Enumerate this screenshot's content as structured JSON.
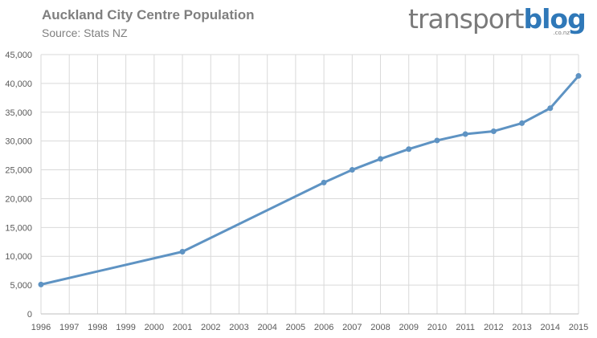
{
  "header": {
    "title": "Auckland City Centre Population",
    "subtitle": "Source: Stats NZ"
  },
  "logo": {
    "part1": "transport",
    "part2": "blog",
    "domain": ".co.nz"
  },
  "colors": {
    "series": "#5e93c3",
    "grid": "#d9d9d9",
    "logo_blue": "#2f78b8"
  },
  "chart_data": {
    "type": "line",
    "title": "Auckland City Centre Population",
    "subtitle": "Source: Stats NZ",
    "xlabel": "",
    "ylabel": "",
    "ylim": [
      0,
      45000
    ],
    "yticks": [
      0,
      5000,
      10000,
      15000,
      20000,
      25000,
      30000,
      35000,
      40000,
      45000
    ],
    "ytick_labels": [
      "0",
      "5,000",
      "10,000",
      "15,000",
      "20,000",
      "25,000",
      "30,000",
      "35,000",
      "40,000",
      "45,000"
    ],
    "x_categories": [
      "1996",
      "1997",
      "1998",
      "1999",
      "2000",
      "2001",
      "2002",
      "2003",
      "2004",
      "2005",
      "2006",
      "2007",
      "2008",
      "2009",
      "2010",
      "2011",
      "2012",
      "2013",
      "2014",
      "2015"
    ],
    "grid": true,
    "legend": "none",
    "series": [
      {
        "name": "Population",
        "points": [
          {
            "x": "1996",
            "y": 5100
          },
          {
            "x": "2001",
            "y": 10800
          },
          {
            "x": "2006",
            "y": 22800
          },
          {
            "x": "2007",
            "y": 25000
          },
          {
            "x": "2008",
            "y": 26900
          },
          {
            "x": "2009",
            "y": 28600
          },
          {
            "x": "2010",
            "y": 30100
          },
          {
            "x": "2011",
            "y": 31200
          },
          {
            "x": "2012",
            "y": 31700
          },
          {
            "x": "2013",
            "y": 33100
          },
          {
            "x": "2014",
            "y": 35700
          },
          {
            "x": "2015",
            "y": 41300
          }
        ]
      }
    ]
  }
}
